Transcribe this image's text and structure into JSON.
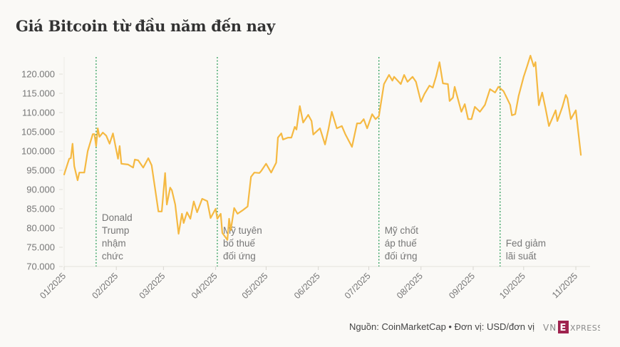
{
  "title": "Giá Bitcoin từ đầu năm đến nay",
  "footer": "Nguồn: CoinMarketCap • Đơn vị: USD/đơn vị",
  "logo": "VNEXPRESS",
  "chart_data": {
    "type": "line",
    "title": "Giá Bitcoin từ đầu năm đến nay",
    "xlabel": "",
    "ylabel": "",
    "ylim": [
      70000,
      125000
    ],
    "yticks": [
      70000,
      75000,
      80000,
      85000,
      90000,
      95000,
      100000,
      105000,
      110000,
      115000,
      120000
    ],
    "ytick_labels": [
      "70.000",
      "75.000",
      "80.000",
      "85.000",
      "90.000",
      "95.000",
      "100.000",
      "105.000",
      "110.000",
      "115.000",
      "120.000"
    ],
    "xticks": [
      "2025-01-01",
      "2025-02-01",
      "2025-03-01",
      "2025-04-01",
      "2025-05-01",
      "2025-06-01",
      "2025-07-01",
      "2025-08-01",
      "2025-09-01",
      "2025-10-01",
      "2025-11-01"
    ],
    "xtick_labels": [
      "01/2025",
      "02/2025",
      "03/2025",
      "04/2025",
      "05/2025",
      "06/2025",
      "07/2025",
      "08/2025",
      "09/2025",
      "10/2025",
      "11/2025"
    ],
    "grid": false,
    "line_color": "#f5b942",
    "event_color": "#2e9e5b",
    "series": [
      {
        "x": [
          "2025-01-01",
          "2025-01-04",
          "2025-01-05",
          "2025-01-06",
          "2025-01-07",
          "2025-01-09",
          "2025-01-10",
          "2025-01-13",
          "2025-01-15",
          "2025-01-18",
          "2025-01-19",
          "2025-01-20",
          "2025-01-21",
          "2025-01-22",
          "2025-01-24",
          "2025-01-26",
          "2025-01-28",
          "2025-01-30",
          "2025-02-02",
          "2025-02-03",
          "2025-02-04",
          "2025-02-08",
          "2025-02-11",
          "2025-02-12",
          "2025-02-14",
          "2025-02-17",
          "2025-02-20",
          "2025-02-22",
          "2025-02-26",
          "2025-02-28",
          "2025-03-02",
          "2025-03-03",
          "2025-03-05",
          "2025-03-06",
          "2025-03-08",
          "2025-03-10",
          "2025-03-12",
          "2025-03-13",
          "2025-03-15",
          "2025-03-17",
          "2025-03-19",
          "2025-03-21",
          "2025-03-24",
          "2025-03-27",
          "2025-03-29",
          "2025-04-01",
          "2025-04-02",
          "2025-04-04",
          "2025-04-05",
          "2025-04-08",
          "2025-04-09",
          "2025-04-10",
          "2025-04-12",
          "2025-04-14",
          "2025-04-17",
          "2025-04-20",
          "2025-04-22",
          "2025-04-24",
          "2025-04-27",
          "2025-04-28",
          "2025-05-01",
          "2025-05-04",
          "2025-05-07",
          "2025-05-08",
          "2025-05-10",
          "2025-05-11",
          "2025-05-14",
          "2025-05-16",
          "2025-05-18",
          "2025-05-19",
          "2025-05-21",
          "2025-05-23",
          "2025-05-26",
          "2025-05-28",
          "2025-05-29",
          "2025-06-02",
          "2025-06-05",
          "2025-06-07",
          "2025-06-09",
          "2025-06-12",
          "2025-06-15",
          "2025-06-17",
          "2025-06-21",
          "2025-06-24",
          "2025-06-26",
          "2025-06-28",
          "2025-06-30",
          "2025-07-03",
          "2025-07-05",
          "2025-07-07",
          "2025-07-10",
          "2025-07-13",
          "2025-07-15",
          "2025-07-16",
          "2025-07-20",
          "2025-07-22",
          "2025-07-24",
          "2025-07-27",
          "2025-07-29",
          "2025-08-01",
          "2025-08-03",
          "2025-08-06",
          "2025-08-08",
          "2025-08-10",
          "2025-08-12",
          "2025-08-14",
          "2025-08-17",
          "2025-08-18",
          "2025-08-20",
          "2025-08-21",
          "2025-08-25",
          "2025-08-27",
          "2025-08-29",
          "2025-08-31",
          "2025-09-02",
          "2025-09-05",
          "2025-09-08",
          "2025-09-11",
          "2025-09-14",
          "2025-09-16",
          "2025-09-19",
          "2025-09-23",
          "2025-09-24",
          "2025-09-26",
          "2025-09-28",
          "2025-10-01",
          "2025-10-03",
          "2025-10-05",
          "2025-10-07",
          "2025-10-08",
          "2025-10-10",
          "2025-10-12",
          "2025-10-14",
          "2025-10-16",
          "2025-10-20",
          "2025-10-21",
          "2025-10-24",
          "2025-10-26",
          "2025-10-27",
          "2025-10-29",
          "2025-11-01",
          "2025-11-04"
        ],
        "y": [
          93900,
          98000,
          98150,
          101900,
          96100,
          92400,
          94400,
          94400,
          100000,
          104400,
          104400,
          101300,
          105900,
          103700,
          104800,
          104000,
          101900,
          104600,
          98000,
          101300,
          96700,
          96500,
          95700,
          97800,
          97600,
          95700,
          98150,
          96300,
          84300,
          84300,
          94300,
          86100,
          90500,
          89800,
          86100,
          78500,
          83700,
          81300,
          84100,
          82400,
          86900,
          84100,
          87600,
          87000,
          82600,
          85000,
          82400,
          83700,
          78700,
          76900,
          82400,
          79400,
          85200,
          83700,
          84600,
          85600,
          93300,
          94400,
          94300,
          94800,
          96700,
          94400,
          97000,
          103500,
          104600,
          103000,
          103500,
          103500,
          106300,
          105600,
          111700,
          107400,
          109400,
          107800,
          104300,
          105900,
          101700,
          105600,
          110200,
          105900,
          106500,
          104400,
          101100,
          107200,
          107200,
          108300,
          105900,
          109600,
          108300,
          109100,
          117400,
          119800,
          118300,
          119300,
          117400,
          119800,
          118000,
          119300,
          118000,
          112800,
          114800,
          117000,
          116500,
          119400,
          123100,
          117600,
          117400,
          113000,
          113900,
          116700,
          110200,
          112200,
          108300,
          108300,
          111500,
          110200,
          112000,
          116100,
          115200,
          116700,
          115600,
          112000,
          109300,
          109600,
          114300,
          119300,
          122000,
          124800,
          122000,
          123100,
          111900,
          115200,
          111100,
          106500,
          110600,
          107800,
          111500,
          114600,
          113700,
          108300,
          110600,
          99000
        ]
      }
    ],
    "annotations": [
      {
        "date": "2025-01-20",
        "lines": [
          "Donald",
          "Trump",
          "nhậm",
          "chức"
        ]
      },
      {
        "date": "2025-04-02",
        "lines": [
          "Mỹ tuyên",
          "bố thuế",
          "đối ứng"
        ]
      },
      {
        "date": "2025-07-07",
        "lines": [
          "Mỹ chốt",
          "áp thuế",
          "đối ứng"
        ]
      },
      {
        "date": "2025-09-17",
        "lines": [
          "Fed giảm",
          "lãi suất"
        ]
      }
    ]
  }
}
